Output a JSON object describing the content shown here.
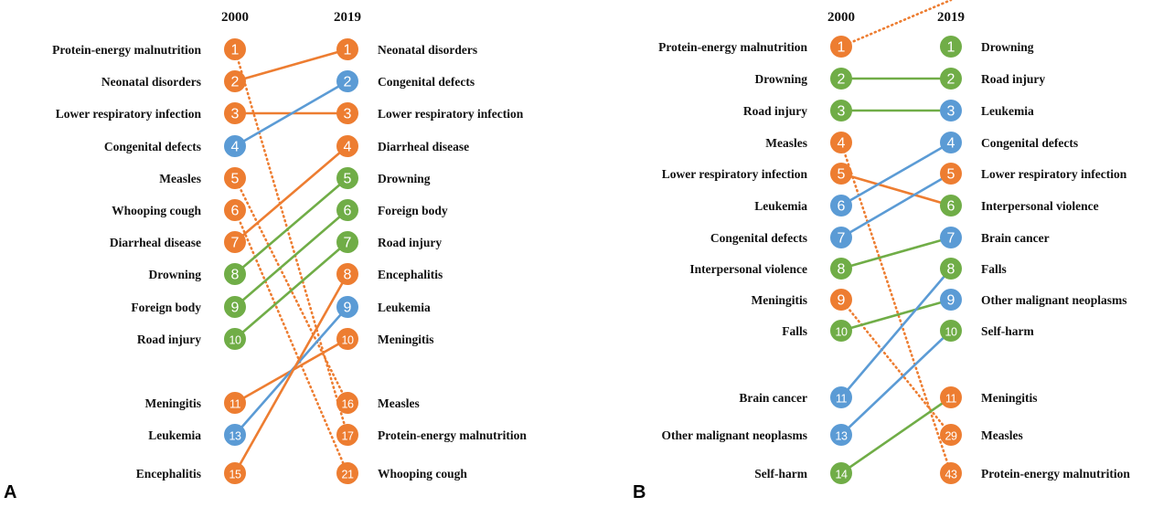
{
  "colors": {
    "orange": "#ED7D31",
    "blue": "#5B9BD5",
    "green": "#70AD47"
  },
  "panels": [
    {
      "label": "A",
      "year_left": "2000",
      "year_right": "2019",
      "left": [
        {
          "rank": "1",
          "name": "Protein-energy malnutrition",
          "color": "orange"
        },
        {
          "rank": "2",
          "name": "Neonatal disorders",
          "color": "orange"
        },
        {
          "rank": "3",
          "name": "Lower respiratory infection",
          "color": "orange"
        },
        {
          "rank": "4",
          "name": "Congenital defects",
          "color": "blue"
        },
        {
          "rank": "5",
          "name": "Measles",
          "color": "orange"
        },
        {
          "rank": "6",
          "name": "Whooping cough",
          "color": "orange"
        },
        {
          "rank": "7",
          "name": "Diarrheal disease",
          "color": "orange"
        },
        {
          "rank": "8",
          "name": "Drowning",
          "color": "green"
        },
        {
          "rank": "9",
          "name": "Foreign body",
          "color": "green"
        },
        {
          "rank": "10",
          "name": "Road injury",
          "color": "green"
        },
        {
          "rank": "11",
          "name": "Meningitis",
          "color": "orange"
        },
        {
          "rank": "13",
          "name": "Leukemia",
          "color": "blue"
        },
        {
          "rank": "15",
          "name": "Encephalitis",
          "color": "orange"
        }
      ],
      "right": [
        {
          "rank": "1",
          "name": "Neonatal disorders",
          "color": "orange"
        },
        {
          "rank": "2",
          "name": "Congenital defects",
          "color": "blue"
        },
        {
          "rank": "3",
          "name": "Lower respiratory infection",
          "color": "orange"
        },
        {
          "rank": "4",
          "name": "Diarrheal disease",
          "color": "orange"
        },
        {
          "rank": "5",
          "name": "Drowning",
          "color": "green"
        },
        {
          "rank": "6",
          "name": "Foreign body",
          "color": "green"
        },
        {
          "rank": "7",
          "name": "Road injury",
          "color": "green"
        },
        {
          "rank": "8",
          "name": "Encephalitis",
          "color": "orange"
        },
        {
          "rank": "9",
          "name": "Leukemia",
          "color": "blue"
        },
        {
          "rank": "10",
          "name": "Meningitis",
          "color": "orange"
        },
        {
          "rank": "16",
          "name": "Measles",
          "color": "orange"
        },
        {
          "rank": "17",
          "name": "Protein-energy malnutrition",
          "color": "orange"
        },
        {
          "rank": "21",
          "name": "Whooping cough",
          "color": "orange"
        }
      ],
      "links": [
        {
          "from": 1,
          "to": 11,
          "color": "orange",
          "dotted": true
        },
        {
          "from": 2,
          "to": 0,
          "color": "orange",
          "dotted": false
        },
        {
          "from": 3,
          "to": 2,
          "color": "orange",
          "dotted": false
        },
        {
          "from": 4,
          "to": 1,
          "color": "blue",
          "dotted": false
        },
        {
          "from": 5,
          "to": 10,
          "color": "orange",
          "dotted": true
        },
        {
          "from": 6,
          "to": 12,
          "color": "orange",
          "dotted": true
        },
        {
          "from": 7,
          "to": 3,
          "color": "orange",
          "dotted": false
        },
        {
          "from": 8,
          "to": 4,
          "color": "green",
          "dotted": false
        },
        {
          "from": 9,
          "to": 5,
          "color": "green",
          "dotted": false
        },
        {
          "from": 10,
          "to": 6,
          "color": "green",
          "dotted": false
        },
        {
          "from": 11,
          "to": 9,
          "color": "orange",
          "dotted": false
        },
        {
          "from": 12,
          "to": 8,
          "color": "blue",
          "dotted": false
        },
        {
          "from": 13,
          "to": 7,
          "color": "orange",
          "dotted": false
        }
      ]
    },
    {
      "label": "B",
      "year_left": "2000",
      "year_right": "2019",
      "left": [
        {
          "rank": "1",
          "name": "Protein-energy malnutrition",
          "color": "orange"
        },
        {
          "rank": "2",
          "name": "Drowning",
          "color": "green"
        },
        {
          "rank": "3",
          "name": "Road injury",
          "color": "green"
        },
        {
          "rank": "4",
          "name": "Measles",
          "color": "orange"
        },
        {
          "rank": "5",
          "name": "Lower respiratory infection",
          "color": "orange"
        },
        {
          "rank": "6",
          "name": "Leukemia",
          "color": "blue"
        },
        {
          "rank": "7",
          "name": "Congenital defects",
          "color": "blue"
        },
        {
          "rank": "8",
          "name": "Interpersonal violence",
          "color": "green"
        },
        {
          "rank": "9",
          "name": "Meningitis",
          "color": "orange"
        },
        {
          "rank": "10",
          "name": "Falls",
          "color": "green"
        },
        {
          "rank": "11",
          "name": "Brain cancer",
          "color": "blue"
        },
        {
          "rank": "13",
          "name": "Other malignant neoplasms",
          "color": "blue"
        },
        {
          "rank": "14",
          "name": "Self-harm",
          "color": "green"
        }
      ],
      "right": [
        {
          "rank": "1",
          "name": "Drowning",
          "color": "green"
        },
        {
          "rank": "2",
          "name": "Road injury",
          "color": "green"
        },
        {
          "rank": "3",
          "name": "Leukemia",
          "color": "blue"
        },
        {
          "rank": "4",
          "name": "Congenital defects",
          "color": "blue"
        },
        {
          "rank": "5",
          "name": "Lower respiratory infection",
          "color": "orange"
        },
        {
          "rank": "6",
          "name": "Interpersonal violence",
          "color": "green"
        },
        {
          "rank": "7",
          "name": "Brain cancer",
          "color": "blue"
        },
        {
          "rank": "8",
          "name": "Falls",
          "color": "green"
        },
        {
          "rank": "9",
          "name": "Other malignant neoplasms",
          "color": "blue"
        },
        {
          "rank": "10",
          "name": "Self-harm",
          "color": "green"
        },
        {
          "rank": "11",
          "name": "Meningitis",
          "color": "orange"
        },
        {
          "rank": "29",
          "name": "Measles",
          "color": "orange"
        },
        {
          "rank": "43",
          "name": "Protein-energy malnutrition",
          "color": "orange"
        }
      ],
      "links": [
        {
          "from": 1,
          "to": 13,
          "color": "orange",
          "dotted": true
        },
        {
          "from": 2,
          "to": 1,
          "color": "green",
          "dotted": false
        },
        {
          "from": 3,
          "to": 2,
          "color": "green",
          "dotted": false
        },
        {
          "from": 4,
          "to": 12,
          "color": "orange",
          "dotted": true
        },
        {
          "from": 5,
          "to": 5,
          "color": "orange",
          "dotted": false
        },
        {
          "from": 6,
          "to": 3,
          "color": "blue",
          "dotted": false
        },
        {
          "from": 7,
          "to": 4,
          "color": "blue",
          "dotted": false
        },
        {
          "from": 8,
          "to": 6,
          "color": "green",
          "dotted": false
        },
        {
          "from": 9,
          "to": 11,
          "color": "orange",
          "dotted": true
        },
        {
          "from": 10,
          "to": 8,
          "color": "green",
          "dotted": false
        },
        {
          "from": 11,
          "to": 7,
          "color": "blue",
          "dotted": false
        },
        {
          "from": 12,
          "to": 9,
          "color": "blue",
          "dotted": false
        },
        {
          "from": 13,
          "to": 10,
          "color": "green",
          "dotted": false
        }
      ]
    }
  ]
}
